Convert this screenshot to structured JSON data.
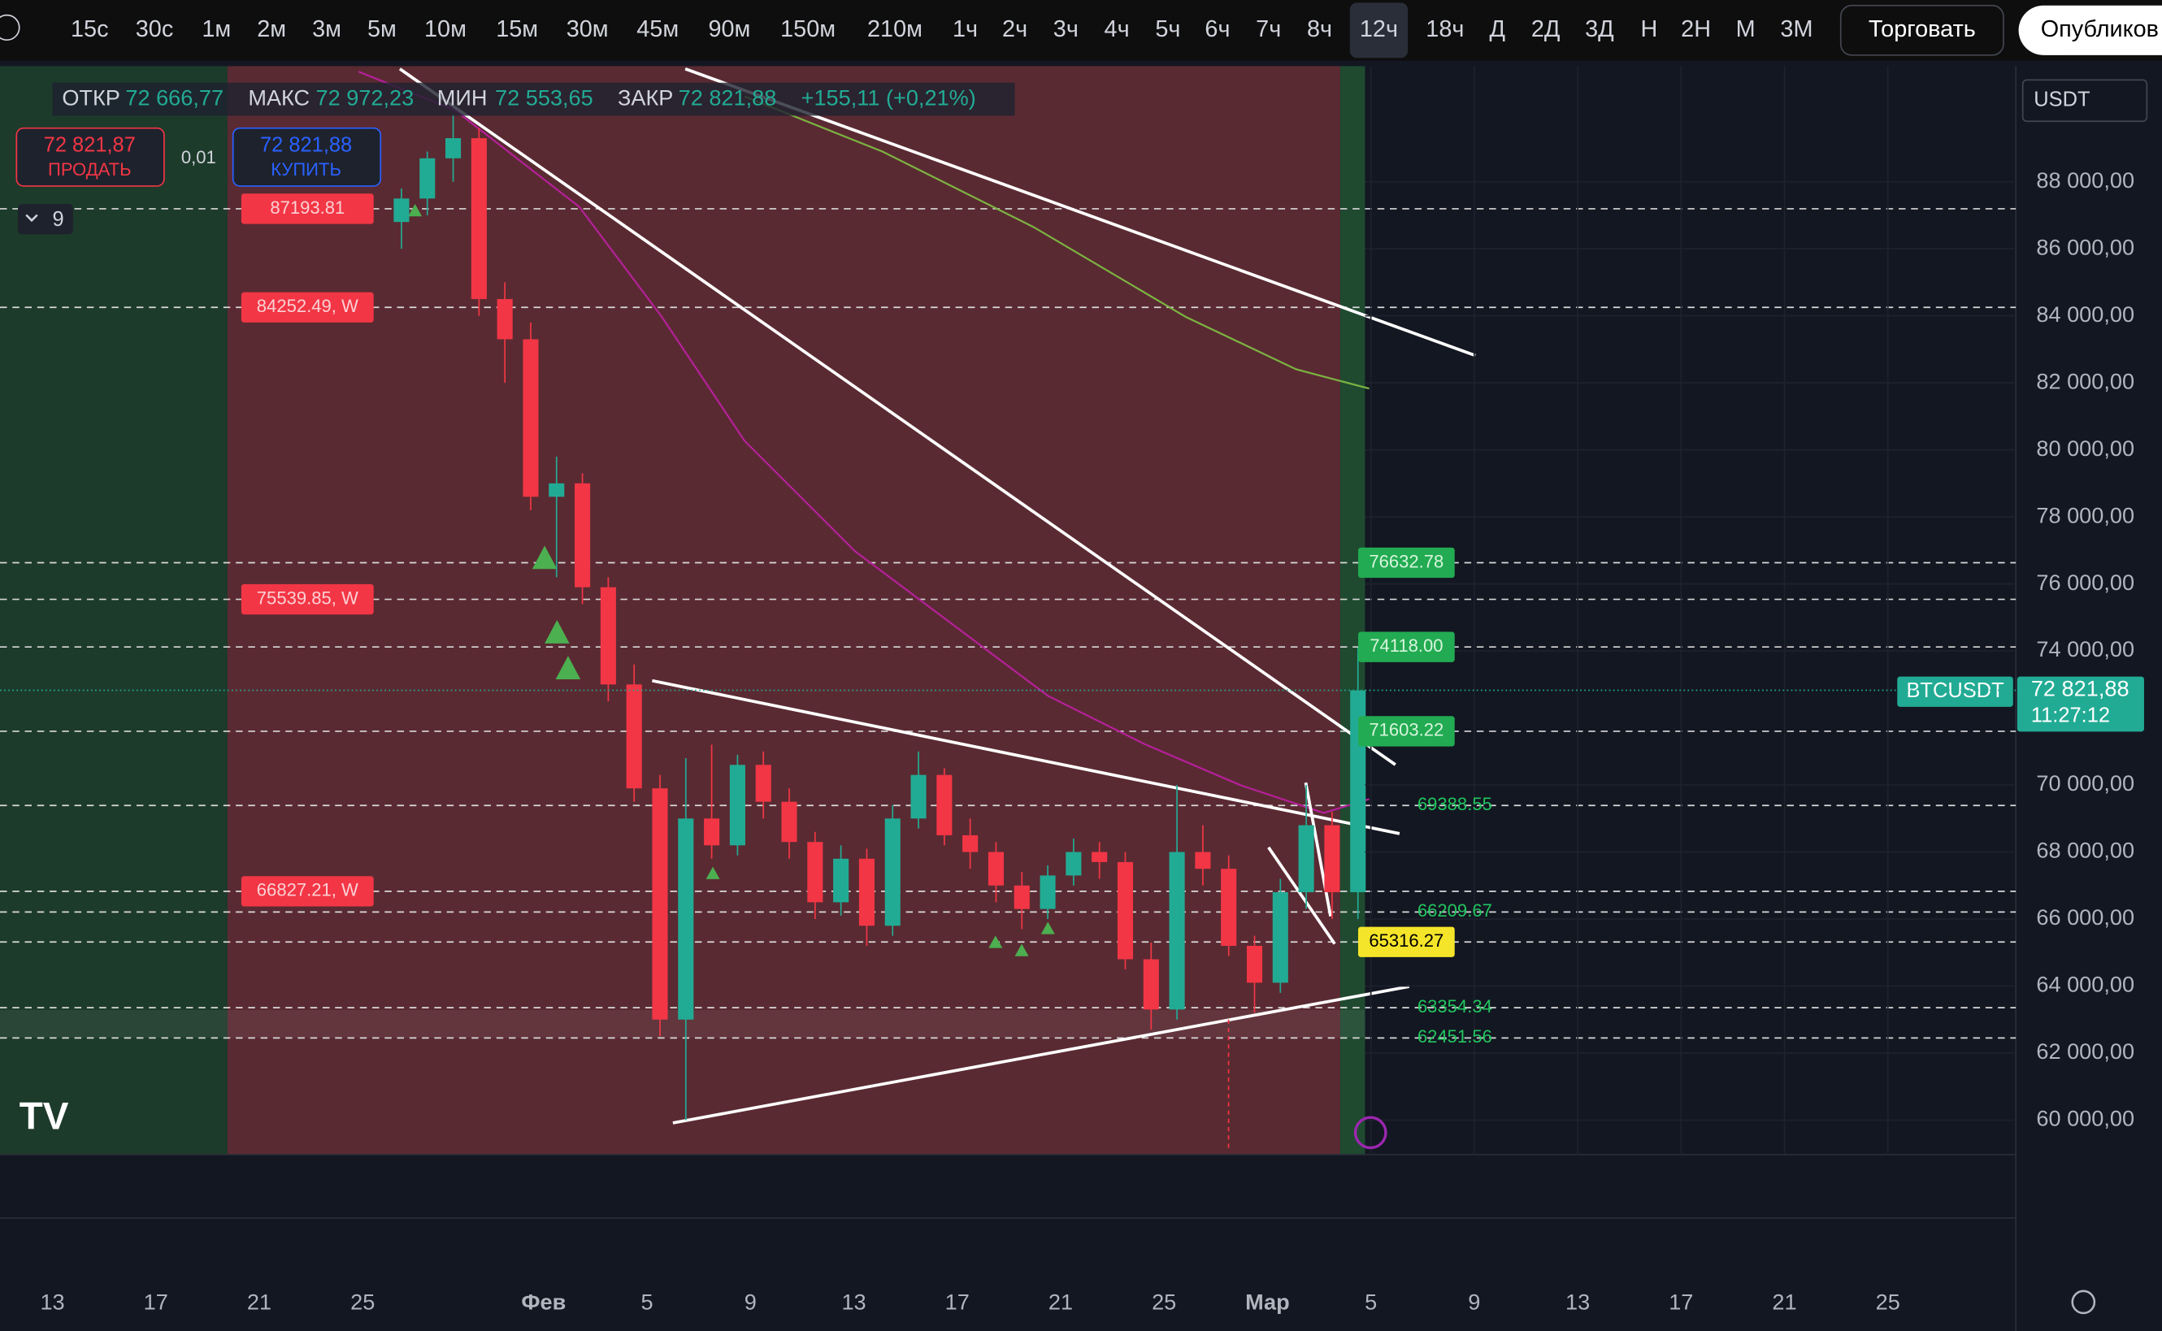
{
  "toolbar": {
    "intervals": [
      "15с",
      "30с",
      "1м",
      "2м",
      "3м",
      "5м",
      "10м",
      "15м",
      "30м",
      "45м",
      "90м",
      "150м",
      "210м",
      "1ч",
      "2ч",
      "3ч",
      "4ч",
      "5ч",
      "6ч",
      "7ч",
      "8ч",
      "12ч",
      "18ч",
      "Д",
      "2Д",
      "3Д",
      "Н",
      "2Н",
      "М",
      "3М"
    ],
    "active": "12ч",
    "trade_button": "Торговать",
    "publish_button": "Опубликов"
  },
  "legend": {
    "open_label": "ОТКР",
    "open": "72 666,77",
    "high_label": "МАКС",
    "high": "72 972,23",
    "low_label": "МИН",
    "low": "72 553,65",
    "close_label": "ЗАКР",
    "close": "72 821,88",
    "change": "+155,11 (+0,21%)"
  },
  "trade_panel": {
    "sell_price": "72 821,87",
    "sell_label": "ПРОДАТЬ",
    "quantity": "0,01",
    "buy_price": "72 821,88",
    "buy_label": "КУПИТЬ",
    "indicators_count": "9"
  },
  "currency": "USDT",
  "last_price_label": {
    "symbol": "BTCUSDT",
    "price": "72 821,88",
    "countdown": "11:27:12"
  },
  "chart_data": {
    "type": "candlestick",
    "x": [
      26,
      27,
      28,
      29,
      30,
      31,
      32,
      33,
      34,
      35,
      36,
      37,
      38,
      39,
      40,
      41,
      42,
      43,
      44,
      45,
      46,
      47,
      48,
      49,
      50,
      51,
      52,
      53,
      54,
      55,
      56,
      57,
      58,
      59,
      60,
      61,
      62,
      63
    ],
    "open": [
      86800,
      87500,
      88700,
      89300,
      84500,
      83300,
      78600,
      79000,
      75900,
      73000,
      69900,
      63000,
      69000,
      68200,
      70600,
      69500,
      68300,
      66500,
      67800,
      65800,
      69000,
      70300,
      68500,
      68000,
      67000,
      66300,
      67300,
      68000,
      67700,
      64800,
      63300,
      68000,
      67500,
      65200,
      64100,
      66800,
      68800,
      66800
    ],
    "high": [
      87800,
      88900,
      90000,
      89600,
      85000,
      83800,
      79800,
      79300,
      76200,
      73600,
      70300,
      70800,
      71200,
      70900,
      71000,
      69900,
      68600,
      68200,
      68100,
      69400,
      71000,
      70500,
      69000,
      68300,
      67400,
      67600,
      68400,
      68300,
      68000,
      65300,
      70000,
      68800,
      67900,
      65500,
      67200,
      70000,
      69200,
      74100
    ],
    "low": [
      86000,
      87000,
      88000,
      84000,
      82000,
      78200,
      76200,
      75400,
      72500,
      69500,
      62500,
      60000,
      67800,
      67900,
      69000,
      67800,
      66000,
      66100,
      65200,
      65500,
      68700,
      68200,
      67500,
      66500,
      65700,
      66000,
      67000,
      67200,
      64500,
      62700,
      63000,
      67000,
      64900,
      63200,
      63800,
      66300,
      66000,
      66000
    ],
    "close": [
      87500,
      88700,
      89300,
      84500,
      83300,
      78600,
      79000,
      75900,
      73000,
      69900,
      63000,
      69000,
      68200,
      70600,
      69500,
      68300,
      66500,
      67800,
      65800,
      69000,
      70300,
      68500,
      68000,
      67000,
      66300,
      67300,
      68000,
      67700,
      64800,
      63300,
      68000,
      67500,
      65200,
      64100,
      66800,
      68800,
      66800,
      72822
    ],
    "up_color": "#22ab94",
    "down_color": "#f23645",
    "xlim": [
      10.97,
      88.95
    ],
    "ylim": [
      58970,
      91450
    ],
    "xticks": [
      {
        "value": 13,
        "label": "13"
      },
      {
        "value": 17,
        "label": "17"
      },
      {
        "value": 21,
        "label": "21"
      },
      {
        "value": 25,
        "label": "25"
      },
      {
        "value": 32,
        "label": "Фев"
      },
      {
        "value": 36,
        "label": "5"
      },
      {
        "value": 40,
        "label": "9"
      },
      {
        "value": 44,
        "label": "13"
      },
      {
        "value": 48,
        "label": "17"
      },
      {
        "value": 52,
        "label": "21"
      },
      {
        "value": 56,
        "label": "25"
      },
      {
        "value": 60,
        "label": "Мар"
      },
      {
        "value": 64,
        "label": "5"
      },
      {
        "value": 68,
        "label": "9"
      },
      {
        "value": 72,
        "label": "13"
      },
      {
        "value": 76,
        "label": "17"
      },
      {
        "value": 80,
        "label": "21"
      },
      {
        "value": 84,
        "label": "25"
      }
    ],
    "yticks": [
      {
        "value": 60000,
        "label": "60 000,00"
      },
      {
        "value": 62000,
        "label": "62 000,00"
      },
      {
        "value": 64000,
        "label": "64 000,00"
      },
      {
        "value": 66000,
        "label": "66 000,00"
      },
      {
        "value": 68000,
        "label": "68 000,00"
      },
      {
        "value": 70000,
        "label": "70 000,00"
      },
      {
        "value": 74000,
        "label": "74 000,00"
      },
      {
        "value": 76000,
        "label": "76 000,00"
      },
      {
        "value": 78000,
        "label": "78 000,00"
      },
      {
        "value": 80000,
        "label": "80 000,00"
      },
      {
        "value": 82000,
        "label": "82 000,00"
      },
      {
        "value": 84000,
        "label": "84 000,00"
      },
      {
        "value": 86000,
        "label": "86 000,00"
      },
      {
        "value": 88000,
        "label": "88 000,00"
      }
    ],
    "price_labels": [
      {
        "value": 87193.81,
        "label": "87193.81",
        "color": "#f23645",
        "side": "left"
      },
      {
        "value": 84252.49,
        "label": "84252.49, W",
        "color": "#f23645",
        "side": "left"
      },
      {
        "value": 75539.85,
        "label": "75539.85, W",
        "color": "#f23645",
        "side": "left"
      },
      {
        "value": 66827.21,
        "label": "66827.21, W",
        "color": "#f23645",
        "side": "left"
      },
      {
        "value": 76632.78,
        "label": "76632.78",
        "color": "#22ab52",
        "side": "right"
      },
      {
        "value": 74118.0,
        "label": "74118.00",
        "color": "#22ab52",
        "side": "right"
      },
      {
        "value": 71603.22,
        "label": "71603.22",
        "color": "#22ab52",
        "side": "right"
      },
      {
        "value": 65316.27,
        "label": "65316.27",
        "color": "#f5e52a",
        "side": "right"
      },
      {
        "value": 69388.55,
        "label": "69388.55",
        "color": "#22c55e",
        "side": "text"
      },
      {
        "value": 66209.67,
        "label": "66209.67",
        "color": "#22c55e",
        "side": "text"
      },
      {
        "value": 63354.34,
        "label": "63354.34",
        "color": "#22c55e",
        "side": "text"
      },
      {
        "value": 62451.56,
        "label": "62451.56",
        "color": "#22c55e",
        "side": "text"
      }
    ]
  }
}
